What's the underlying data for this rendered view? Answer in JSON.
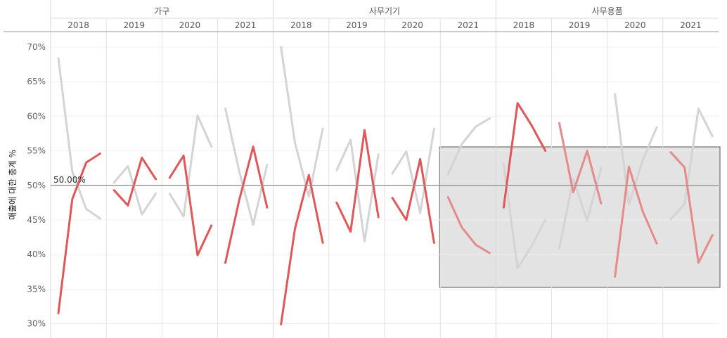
{
  "chart_data": {
    "type": "line",
    "ylabel": "매출에 대한 총계 %",
    "ylim": [
      0.28,
      0.72
    ],
    "yticks": [
      0.3,
      0.35,
      0.4,
      0.45,
      0.5,
      0.55,
      0.6,
      0.65,
      0.7
    ],
    "ytick_labels": [
      "30%",
      "35%",
      "40%",
      "45%",
      "50%",
      "55%",
      "60%",
      "65%",
      "70%"
    ],
    "reference_line": {
      "value": 0.5,
      "label": "50.00%"
    },
    "colors": {
      "highlight": "#e05759",
      "highlight_faded": "#e68a8b",
      "other": "#d4d4d4",
      "ref": "#999999",
      "divider": "#d9d9d9",
      "selection_fill": "#e3e3e3",
      "selection_border": "#555555"
    },
    "categories": [
      {
        "name": "가구",
        "years": [
          {
            "year": "2018",
            "series": [
              {
                "values": [
                  0.315,
                  0.48,
                  0.533,
                  0.546
                ],
                "style": "highlight"
              },
              {
                "values": [
                  0.684,
                  0.52,
                  0.466,
                  0.452
                ],
                "style": "other"
              }
            ]
          },
          {
            "year": "2019",
            "series": [
              {
                "values": [
                  0.493,
                  0.471,
                  0.54,
                  0.509
                ],
                "style": "highlight"
              },
              {
                "values": [
                  0.504,
                  0.528,
                  0.458,
                  0.488
                ],
                "style": "other"
              }
            ]
          },
          {
            "year": "2020",
            "series": [
              {
                "values": [
                  0.511,
                  0.543,
                  0.399,
                  0.442
                ],
                "style": "highlight"
              },
              {
                "values": [
                  0.488,
                  0.455,
                  0.601,
                  0.556
                ],
                "style": "other"
              }
            ]
          },
          {
            "year": "2021",
            "series": [
              {
                "values": [
                  0.388,
                  0.479,
                  0.556,
                  0.468
                ],
                "style": "highlight"
              },
              {
                "values": [
                  0.611,
                  0.52,
                  0.443,
                  0.53
                ],
                "style": "other"
              }
            ]
          }
        ]
      },
      {
        "name": "사무기기",
        "years": [
          {
            "year": "2018",
            "series": [
              {
                "values": [
                  0.299,
                  0.437,
                  0.515,
                  0.417
                ],
                "style": "highlight"
              },
              {
                "values": [
                  0.7,
                  0.562,
                  0.484,
                  0.582
                ],
                "style": "other"
              }
            ]
          },
          {
            "year": "2019",
            "series": [
              {
                "values": [
                  0.475,
                  0.433,
                  0.58,
                  0.454
                ],
                "style": "highlight"
              },
              {
                "values": [
                  0.522,
                  0.566,
                  0.419,
                  0.545
                ],
                "style": "other"
              }
            ]
          },
          {
            "year": "2020",
            "series": [
              {
                "values": [
                  0.482,
                  0.45,
                  0.538,
                  0.417
                ],
                "style": "highlight"
              },
              {
                "values": [
                  0.517,
                  0.549,
                  0.46,
                  0.582
                ],
                "style": "other"
              }
            ]
          },
          {
            "year": "2021",
            "series": [
              {
                "values": [
                  0.483,
                  0.439,
                  0.414,
                  0.402
                ],
                "style": "highlight_faded"
              },
              {
                "values": [
                  0.516,
                  0.56,
                  0.585,
                  0.597
                ],
                "style": "other"
              }
            ]
          }
        ]
      },
      {
        "name": "사무용품",
        "years": [
          {
            "year": "2018",
            "series": [
              {
                "values": [
                  0.468,
                  0.619,
                  0.587,
                  0.55
                ],
                "style": "highlight"
              },
              {
                "values": [
                  0.531,
                  0.38,
                  0.412,
                  0.45
                ],
                "style": "other"
              }
            ]
          },
          {
            "year": "2019",
            "series": [
              {
                "values": [
                  0.59,
                  0.49,
                  0.55,
                  0.474
                ],
                "style": "highlight_faded"
              },
              {
                "values": [
                  0.409,
                  0.509,
                  0.449,
                  0.525
                ],
                "style": "other"
              }
            ]
          },
          {
            "year": "2020",
            "series": [
              {
                "values": [
                  0.368,
                  0.527,
                  0.462,
                  0.416
                ],
                "style": "highlight_faded"
              },
              {
                "values": [
                  0.632,
                  0.472,
                  0.537,
                  0.584
                ],
                "style": "other"
              }
            ]
          },
          {
            "year": "2021",
            "series": [
              {
                "values": [
                  0.548,
                  0.526,
                  0.388,
                  0.428
                ],
                "style": "highlight_faded"
              },
              {
                "values": [
                  0.451,
                  0.473,
                  0.611,
                  0.571
                ],
                "style": "other"
              }
            ]
          }
        ]
      }
    ]
  }
}
